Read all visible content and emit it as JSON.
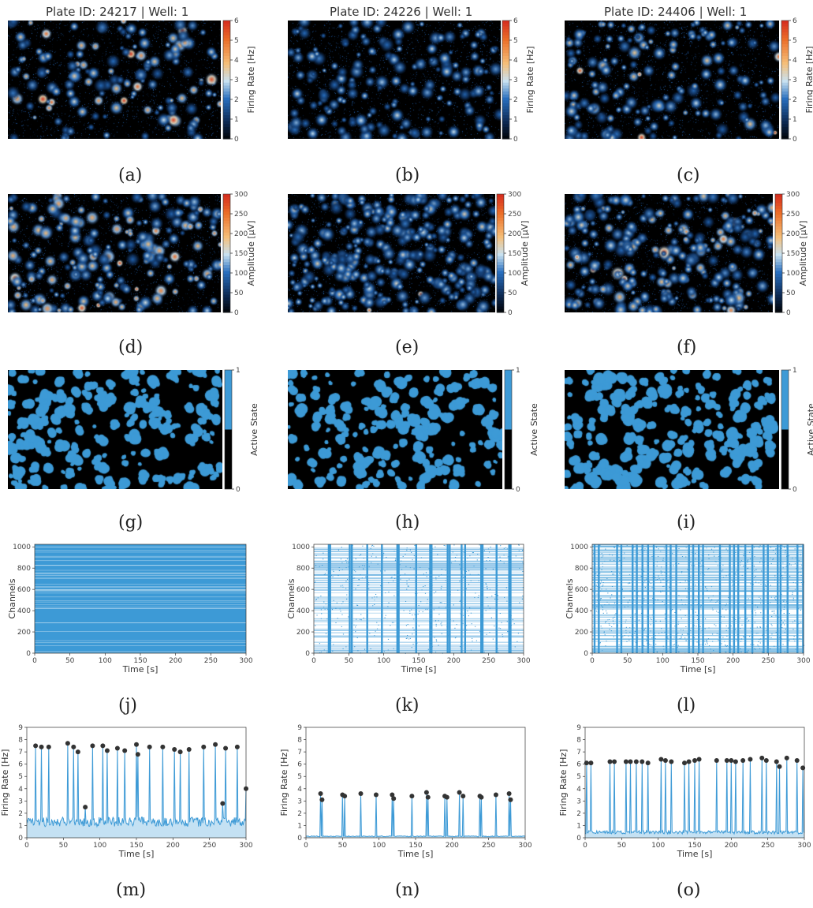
{
  "columns": [
    {
      "title": "Plate ID: 24217 | Well: 1"
    },
    {
      "title": "Plate ID: 24226 | Well: 1"
    },
    {
      "title": "Plate ID: 24406 | Well: 1"
    }
  ],
  "captions": [
    "(a)",
    "(b)",
    "(c)",
    "(d)",
    "(e)",
    "(f)",
    "(g)",
    "(h)",
    "(i)",
    "(j)",
    "(k)",
    "(l)",
    "(m)",
    "(n)",
    "(o)"
  ],
  "colors": {
    "accent": "#3d9ad6",
    "hot": "#d7301f",
    "black": "#000000"
  },
  "chart_data": [
    {
      "id": "a",
      "type": "heatmap",
      "colorbar_label": "Firing Rate [Hz]",
      "colorbar_ticks": [
        "0",
        "1",
        "2",
        "3",
        "4",
        "5",
        "6"
      ],
      "range": [
        0,
        6
      ]
    },
    {
      "id": "b",
      "type": "heatmap",
      "colorbar_label": "Firing Rate [Hz]",
      "colorbar_ticks": [
        "0",
        "1",
        "2",
        "3",
        "4",
        "5",
        "6"
      ],
      "range": [
        0,
        6
      ]
    },
    {
      "id": "c",
      "type": "heatmap",
      "colorbar_label": "Firing Rate [Hz]",
      "colorbar_ticks": [
        "0",
        "1",
        "2",
        "3",
        "4",
        "5",
        "6"
      ],
      "range": [
        0,
        6
      ]
    },
    {
      "id": "d",
      "type": "heatmap",
      "colorbar_label": "Amplitude [µV]",
      "colorbar_ticks": [
        "0",
        "50",
        "100",
        "150",
        "200",
        "250",
        "300"
      ],
      "range": [
        0,
        300
      ]
    },
    {
      "id": "e",
      "type": "heatmap",
      "colorbar_label": "Amplitude [µV]",
      "colorbar_ticks": [
        "0",
        "50",
        "100",
        "150",
        "200",
        "250",
        "300"
      ],
      "range": [
        0,
        300
      ]
    },
    {
      "id": "f",
      "type": "heatmap",
      "colorbar_label": "Amplitude [µV]",
      "colorbar_ticks": [
        "0",
        "50",
        "100",
        "150",
        "200",
        "250",
        "300"
      ],
      "range": [
        0,
        300
      ]
    },
    {
      "id": "g",
      "type": "heatmap",
      "colorbar_label": "Active State",
      "colorbar_ticks": [
        "0",
        "1"
      ],
      "range": [
        0,
        1
      ]
    },
    {
      "id": "h",
      "type": "heatmap",
      "colorbar_label": "Active State",
      "colorbar_ticks": [
        "0",
        "1"
      ],
      "range": [
        0,
        1
      ]
    },
    {
      "id": "i",
      "type": "heatmap",
      "colorbar_label": "Active State",
      "colorbar_ticks": [
        "0",
        "1"
      ],
      "range": [
        0,
        1
      ]
    },
    {
      "id": "j",
      "type": "scatter",
      "xlabel": "Time [s]",
      "ylabel": "Channels",
      "xticks": [
        "0",
        "50",
        "100",
        "150",
        "200",
        "250",
        "300"
      ],
      "yticks": [
        "0",
        "200",
        "400",
        "600",
        "800",
        "1000"
      ],
      "xlim": [
        0,
        300
      ],
      "ylim": [
        0,
        1024
      ]
    },
    {
      "id": "k",
      "type": "scatter",
      "xlabel": "Time [s]",
      "ylabel": "Channels",
      "xticks": [
        "0",
        "50",
        "100",
        "150",
        "200",
        "250",
        "300"
      ],
      "yticks": [
        "0",
        "200",
        "400",
        "600",
        "800",
        "1000"
      ],
      "xlim": [
        0,
        300
      ],
      "ylim": [
        0,
        1024
      ]
    },
    {
      "id": "l",
      "type": "scatter",
      "xlabel": "Time [s]",
      "ylabel": "Channels",
      "xticks": [
        "0",
        "50",
        "100",
        "150",
        "200",
        "250",
        "300"
      ],
      "yticks": [
        "0",
        "200",
        "400",
        "600",
        "800",
        "1000"
      ],
      "xlim": [
        0,
        300
      ],
      "ylim": [
        0,
        1024
      ]
    },
    {
      "id": "m",
      "type": "line",
      "xlabel": "Time [s]",
      "ylabel": "Firing Rate [Hz]",
      "xticks": [
        "0",
        "50",
        "100",
        "150",
        "200",
        "250",
        "300"
      ],
      "yticks": [
        "0",
        "1",
        "2",
        "3",
        "4",
        "5",
        "6",
        "7",
        "8",
        "9"
      ],
      "xlim": [
        0,
        300
      ],
      "ylim": [
        0,
        9
      ],
      "peaks": [
        [
          12,
          7.5
        ],
        [
          20,
          7.4
        ],
        [
          30,
          7.4
        ],
        [
          56,
          7.7
        ],
        [
          64,
          7.4
        ],
        [
          70,
          7.0
        ],
        [
          80,
          2.5
        ],
        [
          90,
          7.5
        ],
        [
          104,
          7.5
        ],
        [
          110,
          7.1
        ],
        [
          124,
          7.3
        ],
        [
          134,
          7.1
        ],
        [
          150,
          7.6
        ],
        [
          152,
          6.8
        ],
        [
          168,
          7.4
        ],
        [
          186,
          7.4
        ],
        [
          202,
          7.2
        ],
        [
          210,
          7.0
        ],
        [
          222,
          7.2
        ],
        [
          242,
          7.4
        ],
        [
          258,
          7.6
        ],
        [
          268,
          2.8
        ],
        [
          272,
          7.3
        ],
        [
          288,
          7.4
        ],
        [
          300,
          4.0
        ]
      ]
    },
    {
      "id": "n",
      "type": "line",
      "xlabel": "Time [s]",
      "ylabel": "Firing Rate [Hz]",
      "xticks": [
        "0",
        "50",
        "100",
        "150",
        "200",
        "250",
        "300"
      ],
      "yticks": [
        "0",
        "1",
        "2",
        "3",
        "4",
        "5",
        "6",
        "7",
        "8",
        "9"
      ],
      "xlim": [
        0,
        300
      ],
      "ylim": [
        0,
        9
      ],
      "peaks": [
        [
          20,
          3.6
        ],
        [
          22,
          3.1
        ],
        [
          50,
          3.5
        ],
        [
          53,
          3.4
        ],
        [
          75,
          3.6
        ],
        [
          96,
          3.5
        ],
        [
          118,
          3.5
        ],
        [
          120,
          3.2
        ],
        [
          145,
          3.4
        ],
        [
          165,
          3.7
        ],
        [
          167,
          3.3
        ],
        [
          190,
          3.4
        ],
        [
          193,
          3.3
        ],
        [
          210,
          3.7
        ],
        [
          215,
          3.4
        ],
        [
          238,
          3.4
        ],
        [
          240,
          3.3
        ],
        [
          260,
          3.5
        ],
        [
          278,
          3.6
        ],
        [
          280,
          3.1
        ]
      ]
    },
    {
      "id": "o",
      "type": "line",
      "xlabel": "Time [s]",
      "ylabel": "Firing Rate [Hz]",
      "xticks": [
        "0",
        "50",
        "100",
        "150",
        "200",
        "250",
        "300"
      ],
      "yticks": [
        "0",
        "1",
        "2",
        "3",
        "4",
        "5",
        "6",
        "7",
        "8",
        "9"
      ],
      "xlim": [
        0,
        300
      ],
      "ylim": [
        0,
        9
      ],
      "peaks": [
        [
          2,
          6.1
        ],
        [
          8,
          6.1
        ],
        [
          34,
          6.2
        ],
        [
          40,
          6.2
        ],
        [
          56,
          6.2
        ],
        [
          62,
          6.2
        ],
        [
          70,
          6.2
        ],
        [
          78,
          6.2
        ],
        [
          86,
          6.1
        ],
        [
          104,
          6.4
        ],
        [
          110,
          6.3
        ],
        [
          118,
          6.2
        ],
        [
          136,
          6.1
        ],
        [
          142,
          6.2
        ],
        [
          150,
          6.3
        ],
        [
          156,
          6.4
        ],
        [
          180,
          6.3
        ],
        [
          194,
          6.3
        ],
        [
          200,
          6.3
        ],
        [
          206,
          6.2
        ],
        [
          216,
          6.3
        ],
        [
          226,
          6.4
        ],
        [
          242,
          6.5
        ],
        [
          248,
          6.3
        ],
        [
          262,
          6.2
        ],
        [
          266,
          5.8
        ],
        [
          276,
          6.5
        ],
        [
          290,
          6.3
        ],
        [
          298,
          5.7
        ]
      ]
    }
  ]
}
